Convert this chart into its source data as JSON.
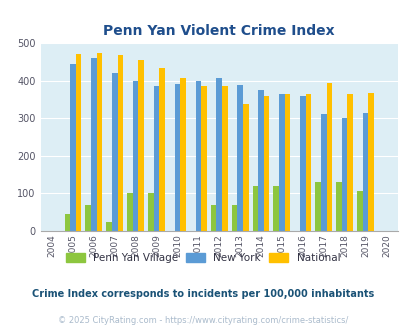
{
  "title": "Penn Yan Violent Crime Index",
  "years": [
    2004,
    2005,
    2006,
    2007,
    2008,
    2009,
    2010,
    2011,
    2012,
    2013,
    2014,
    2015,
    2016,
    2017,
    2018,
    2019,
    2020
  ],
  "penn_yan": [
    0,
    45,
    70,
    25,
    100,
    100,
    0,
    0,
    70,
    70,
    120,
    120,
    0,
    130,
    130,
    105,
    0
  ],
  "new_york": [
    0,
    445,
    460,
    420,
    400,
    385,
    390,
    400,
    407,
    388,
    375,
    365,
    360,
    310,
    300,
    313,
    0
  ],
  "national": [
    0,
    470,
    472,
    468,
    455,
    432,
    408,
    385,
    385,
    338,
    358,
    365,
    365,
    393,
    365,
    368,
    0
  ],
  "penn_yan_color": "#8dc63f",
  "new_york_color": "#5b9bd5",
  "national_color": "#ffc000",
  "plot_bg": "#ddeef5",
  "title_color": "#1f4e8c",
  "legend_labels": [
    "Penn Yan Village",
    "New York",
    "National"
  ],
  "footnote": "Crime Index corresponds to incidents per 100,000 inhabitants",
  "copyright": "© 2025 CityRating.com - https://www.cityrating.com/crime-statistics/",
  "ylim": [
    0,
    500
  ],
  "yticks": [
    0,
    100,
    200,
    300,
    400,
    500
  ],
  "bar_width": 0.27,
  "footnote_color": "#1a5276",
  "copyright_color": "#aabbcc"
}
